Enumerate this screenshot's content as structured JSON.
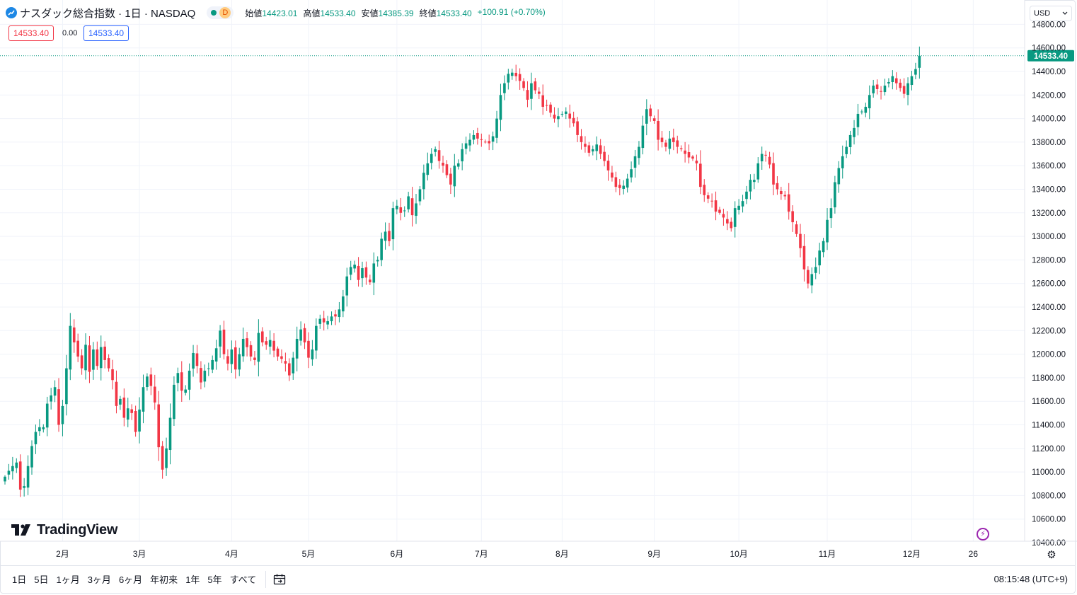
{
  "header": {
    "title": "ナスダック総合指数 · 1日 · NASDAQ",
    "badge_d": "D",
    "ohlc": [
      {
        "label": "始値",
        "value": "14423.01"
      },
      {
        "label": "高値",
        "value": "14533.40"
      },
      {
        "label": "安値",
        "value": "14385.39"
      },
      {
        "label": "終値",
        "value": "14533.40"
      }
    ],
    "change": "+100.91 (+0.70%)"
  },
  "quote": {
    "sell": "14533.40",
    "spread": "0.00",
    "buy": "14533.40"
  },
  "currency": {
    "value": "USD"
  },
  "brand": {
    "name": "TradingView"
  },
  "colors": {
    "up": "#089981",
    "down": "#f23645",
    "grid": "#f0f3fa",
    "last_price_bg": "#089981",
    "accent": "#2962ff"
  },
  "bottom_bar": {
    "ranges": [
      "1日",
      "5日",
      "1ヶ月",
      "3ヶ月",
      "6ヶ月",
      "年初来",
      "1年",
      "5年",
      "すべて"
    ],
    "clock": "08:15:48 (UTC+9)"
  },
  "chart_data": {
    "type": "candlestick",
    "y_ticks": [
      10400,
      10600,
      10800,
      11000,
      11200,
      11400,
      11600,
      11800,
      12000,
      12200,
      12400,
      12600,
      12800,
      13000,
      13200,
      13400,
      13600,
      13800,
      14000,
      14200,
      14400,
      14600,
      14800
    ],
    "y_tick_labels": [
      "10400.00",
      "10600.00",
      "10800.00",
      "11000.00",
      "11200.00",
      "11400.00",
      "11600.00",
      "11800.00",
      "12000.00",
      "12200.00",
      "12400.00",
      "12600.00",
      "12800.00",
      "13000.00",
      "13200.00",
      "13400.00",
      "13600.00",
      "13800.00",
      "14000.00",
      "14200.00",
      "14400.00",
      "14600.00",
      "14800.00"
    ],
    "ylim": [
      10400,
      14800
    ],
    "x_labels": [
      {
        "label": "2月",
        "index": 15
      },
      {
        "label": "3月",
        "index": 35
      },
      {
        "label": "4月",
        "index": 59
      },
      {
        "label": "5月",
        "index": 79
      },
      {
        "label": "6月",
        "index": 102
      },
      {
        "label": "7月",
        "index": 124
      },
      {
        "label": "8月",
        "index": 145
      },
      {
        "label": "9月",
        "index": 169
      },
      {
        "label": "10月",
        "index": 191
      },
      {
        "label": "11月",
        "index": 214
      },
      {
        "label": "12月",
        "index": 236
      },
      {
        "label": "26",
        "index": 252
      }
    ],
    "last_price": 14533.4,
    "last_price_label": "14533.40",
    "closes": [
      10960,
      11010,
      11050,
      11080,
      10850,
      10880,
      11050,
      11220,
      11340,
      11380,
      11380,
      11580,
      11650,
      11720,
      11400,
      11560,
      11880,
      12240,
      12100,
      11980,
      11880,
      12080,
      11850,
      12040,
      11900,
      12060,
      11950,
      11880,
      11780,
      11560,
      11620,
      11460,
      11540,
      11500,
      11340,
      11530,
      11720,
      11810,
      11730,
      11590,
      11210,
      11020,
      11200,
      11460,
      11740,
      11840,
      11690,
      11700,
      11860,
      12010,
      11900,
      11760,
      11860,
      11880,
      11950,
      12050,
      12200,
      12000,
      11920,
      12040,
      11870,
      12000,
      12130,
      12060,
      11980,
      11950,
      12180,
      12100,
      12080,
      12120,
      12030,
      11980,
      11960,
      11920,
      11820,
      11970,
      12130,
      12210,
      12100,
      11970,
      12040,
      12240,
      12300,
      12270,
      12280,
      12320,
      12320,
      12380,
      12490,
      12660,
      12740,
      12760,
      12630,
      12730,
      12650,
      12610,
      12770,
      12800,
      12980,
      13040,
      12960,
      13240,
      13260,
      13200,
      13220,
      13340,
      13180,
      13280,
      13400,
      13540,
      13620,
      13700,
      13740,
      13640,
      13600,
      13520,
      13440,
      13600,
      13620,
      13740,
      13790,
      13820,
      13860,
      13830,
      13820,
      13800,
      13790,
      13850,
      14000,
      14200,
      14300,
      14380,
      14390,
      14360,
      14320,
      14260,
      14160,
      14300,
      14240,
      14210,
      14100,
      14110,
      14050,
      14000,
      14020,
      14040,
      14060,
      14000,
      13960,
      13860,
      13800,
      13760,
      13710,
      13740,
      13780,
      13700,
      13640,
      13560,
      13500,
      13420,
      13410,
      13430,
      13490,
      13570,
      13680,
      13760,
      13940,
      14080,
      14020,
      13980,
      13820,
      13800,
      13760,
      13830,
      13800,
      13760,
      13740,
      13700,
      13670,
      13660,
      13620,
      13420,
      13350,
      13320,
      13300,
      13210,
      13200,
      13160,
      13110,
      13070,
      13240,
      13260,
      13300,
      13380,
      13480,
      13480,
      13620,
      13700,
      13690,
      13610,
      13440,
      13400,
      13360,
      13340,
      13210,
      13120,
      13020,
      12900,
      12720,
      12600,
      12680,
      12740,
      12880,
      12960,
      13140,
      13240,
      13460,
      13580,
      13680,
      13760,
      13860,
      13920,
      14040,
      14060,
      14100,
      14200,
      14280,
      14250,
      14230,
      14280,
      14310,
      14360,
      14300,
      14260,
      14210,
      14300,
      14360,
      14420,
      14533.4
    ]
  }
}
